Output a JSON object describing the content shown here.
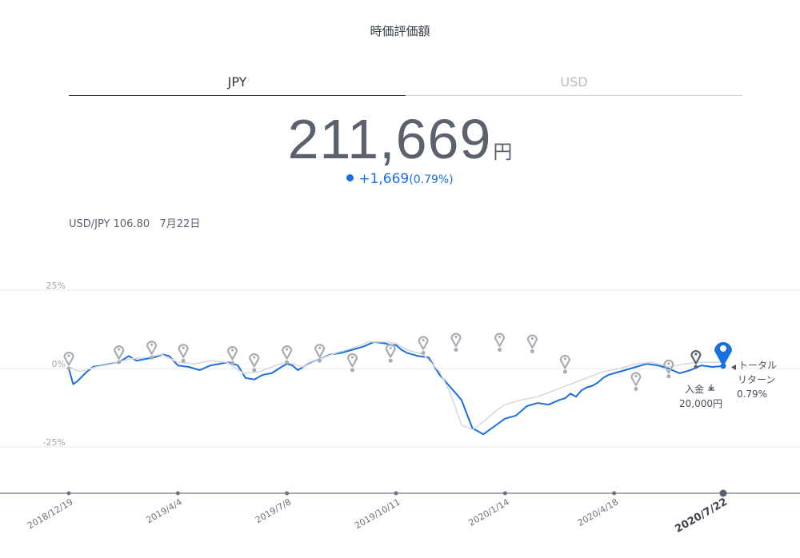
{
  "title": "時価評価額",
  "tabs": [
    {
      "label": "JPY",
      "active": true
    },
    {
      "label": "USD",
      "active": false
    }
  ],
  "valuation": {
    "amount": "211,669",
    "unit": "円",
    "change": "+1,669",
    "change_pct": "(0.79%)"
  },
  "fx": {
    "label": "USD/JPY 106.80",
    "date": "7月22日"
  },
  "colors": {
    "accent": "#1a6fe0",
    "marker": "#a8acb3",
    "benchmark": "#d6d9de"
  },
  "chart_data": {
    "type": "line",
    "yticks": [
      {
        "value": 25,
        "label": "25%"
      },
      {
        "value": 0,
        "label": "0%"
      },
      {
        "value": -25,
        "label": "-25%"
      }
    ],
    "ylim": [
      -40,
      28
    ],
    "xticks": [
      "2018/12/19",
      "2019/4/4",
      "2019/7/8",
      "2019/10/11",
      "2020/1/14",
      "2020/4/18",
      "2020/7/22"
    ],
    "xticks_bold": "2020/7/22",
    "x_index": [
      0,
      1,
      2,
      3,
      4,
      5,
      6
    ],
    "series": [
      {
        "role": "main",
        "x": [
          0.0,
          0.04,
          0.08,
          0.15,
          0.22,
          0.3,
          0.38,
          0.46,
          0.55,
          0.62,
          0.7,
          0.78,
          0.86,
          0.92,
          1.0,
          1.1,
          1.2,
          1.3,
          1.38,
          1.46,
          1.55,
          1.62,
          1.7,
          1.78,
          1.86,
          1.95,
          2.0,
          2.05,
          2.1,
          2.2,
          2.3,
          2.4,
          2.5,
          2.6,
          2.7,
          2.8,
          2.9,
          2.95,
          3.0,
          3.05,
          3.1,
          3.2,
          3.3,
          3.4,
          3.5,
          3.6,
          3.7,
          3.8,
          3.9,
          4.0,
          4.1,
          4.2,
          4.3,
          4.4,
          4.5,
          4.55,
          4.6,
          4.65,
          4.7,
          4.75,
          4.8,
          4.85,
          4.9,
          4.95,
          5.0,
          5.1,
          5.2,
          5.3,
          5.4,
          5.5,
          5.6,
          5.7,
          5.8,
          5.9,
          6.0
        ],
        "y": [
          0.0,
          -5.0,
          -4.0,
          -1.5,
          0.5,
          1.0,
          1.5,
          2.0,
          4.0,
          2.5,
          3.0,
          3.5,
          4.5,
          4.0,
          1.0,
          0.5,
          -0.5,
          1.0,
          1.5,
          2.0,
          1.0,
          -3.0,
          -3.5,
          -2.0,
          -1.5,
          0.5,
          1.5,
          1.0,
          -0.5,
          1.5,
          3.0,
          4.5,
          5.0,
          6.0,
          7.0,
          8.5,
          8.0,
          7.5,
          7.5,
          6.0,
          5.0,
          4.0,
          3.5,
          -2.0,
          -6.0,
          -10.0,
          -19.0,
          -21.0,
          -18.5,
          -16.0,
          -15.0,
          -12.0,
          -11.0,
          -11.5,
          -10.0,
          -9.5,
          -8.0,
          -9.0,
          -7.0,
          -6.0,
          -5.5,
          -4.5,
          -3.0,
          -2.0,
          -1.5,
          -0.5,
          0.5,
          1.5,
          1.0,
          0.0,
          -1.5,
          -0.5,
          1.0,
          0.5,
          0.8
        ],
        "color": "#1a6fe0"
      },
      {
        "role": "benchmark",
        "x": [
          0.0,
          0.1,
          0.25,
          0.4,
          0.55,
          0.7,
          0.85,
          1.0,
          1.15,
          1.3,
          1.45,
          1.6,
          1.75,
          1.9,
          2.0,
          2.15,
          2.3,
          2.45,
          2.6,
          2.75,
          2.9,
          3.0,
          3.1,
          3.25,
          3.4,
          3.5,
          3.6,
          3.7,
          3.8,
          3.9,
          4.0,
          4.15,
          4.3,
          4.45,
          4.6,
          4.75,
          4.9,
          5.05,
          5.2,
          5.35,
          5.5,
          5.65,
          5.8,
          5.95,
          6.0
        ],
        "y": [
          0.5,
          -1.0,
          0.5,
          1.5,
          3.0,
          3.5,
          4.5,
          2.0,
          1.5,
          2.5,
          2.0,
          -1.5,
          -1.0,
          1.0,
          2.0,
          0.5,
          3.0,
          5.0,
          6.5,
          8.5,
          8.5,
          8.0,
          6.0,
          4.5,
          -1.0,
          -8.0,
          -18.0,
          -19.5,
          -17.0,
          -14.0,
          -11.5,
          -10.0,
          -9.0,
          -7.0,
          -5.0,
          -3.0,
          -1.0,
          0.0,
          1.5,
          2.0,
          0.5,
          1.5,
          2.0,
          2.0,
          2.0
        ],
        "color": "#d6d9de"
      }
    ],
    "markers": [
      {
        "x": 0.0,
        "y": 0.0,
        "type": "grey"
      },
      {
        "x": 0.46,
        "y": 2.0,
        "type": "grey"
      },
      {
        "x": 0.76,
        "y": 3.5,
        "type": "grey"
      },
      {
        "x": 1.05,
        "y": 2.5,
        "type": "grey"
      },
      {
        "x": 1.5,
        "y": 1.8,
        "type": "grey"
      },
      {
        "x": 1.7,
        "y": -0.5,
        "type": "grey"
      },
      {
        "x": 2.0,
        "y": 2.0,
        "type": "grey"
      },
      {
        "x": 2.3,
        "y": 2.5,
        "type": "grey"
      },
      {
        "x": 2.6,
        "y": -0.5,
        "type": "grey"
      },
      {
        "x": 2.95,
        "y": 2.5,
        "type": "grey"
      },
      {
        "x": 3.25,
        "y": 5.0,
        "type": "grey"
      },
      {
        "x": 3.55,
        "y": 6.0,
        "type": "grey"
      },
      {
        "x": 3.95,
        "y": 6.0,
        "type": "grey"
      },
      {
        "x": 4.25,
        "y": 5.5,
        "type": "grey"
      },
      {
        "x": 4.55,
        "y": -1.0,
        "type": "grey"
      },
      {
        "x": 5.2,
        "y": -6.5,
        "type": "grey"
      },
      {
        "x": 5.5,
        "y": -2.5,
        "type": "grey"
      },
      {
        "x": 5.75,
        "y": 0.5,
        "type": "dark"
      },
      {
        "x": 6.0,
        "y": 0.8,
        "type": "blue"
      }
    ],
    "annotations": {
      "deposit_label": "入金",
      "deposit_amount": "20,000円",
      "return_line1": "トータル",
      "return_line2": "リターン",
      "return_pct": "0.79%"
    }
  }
}
